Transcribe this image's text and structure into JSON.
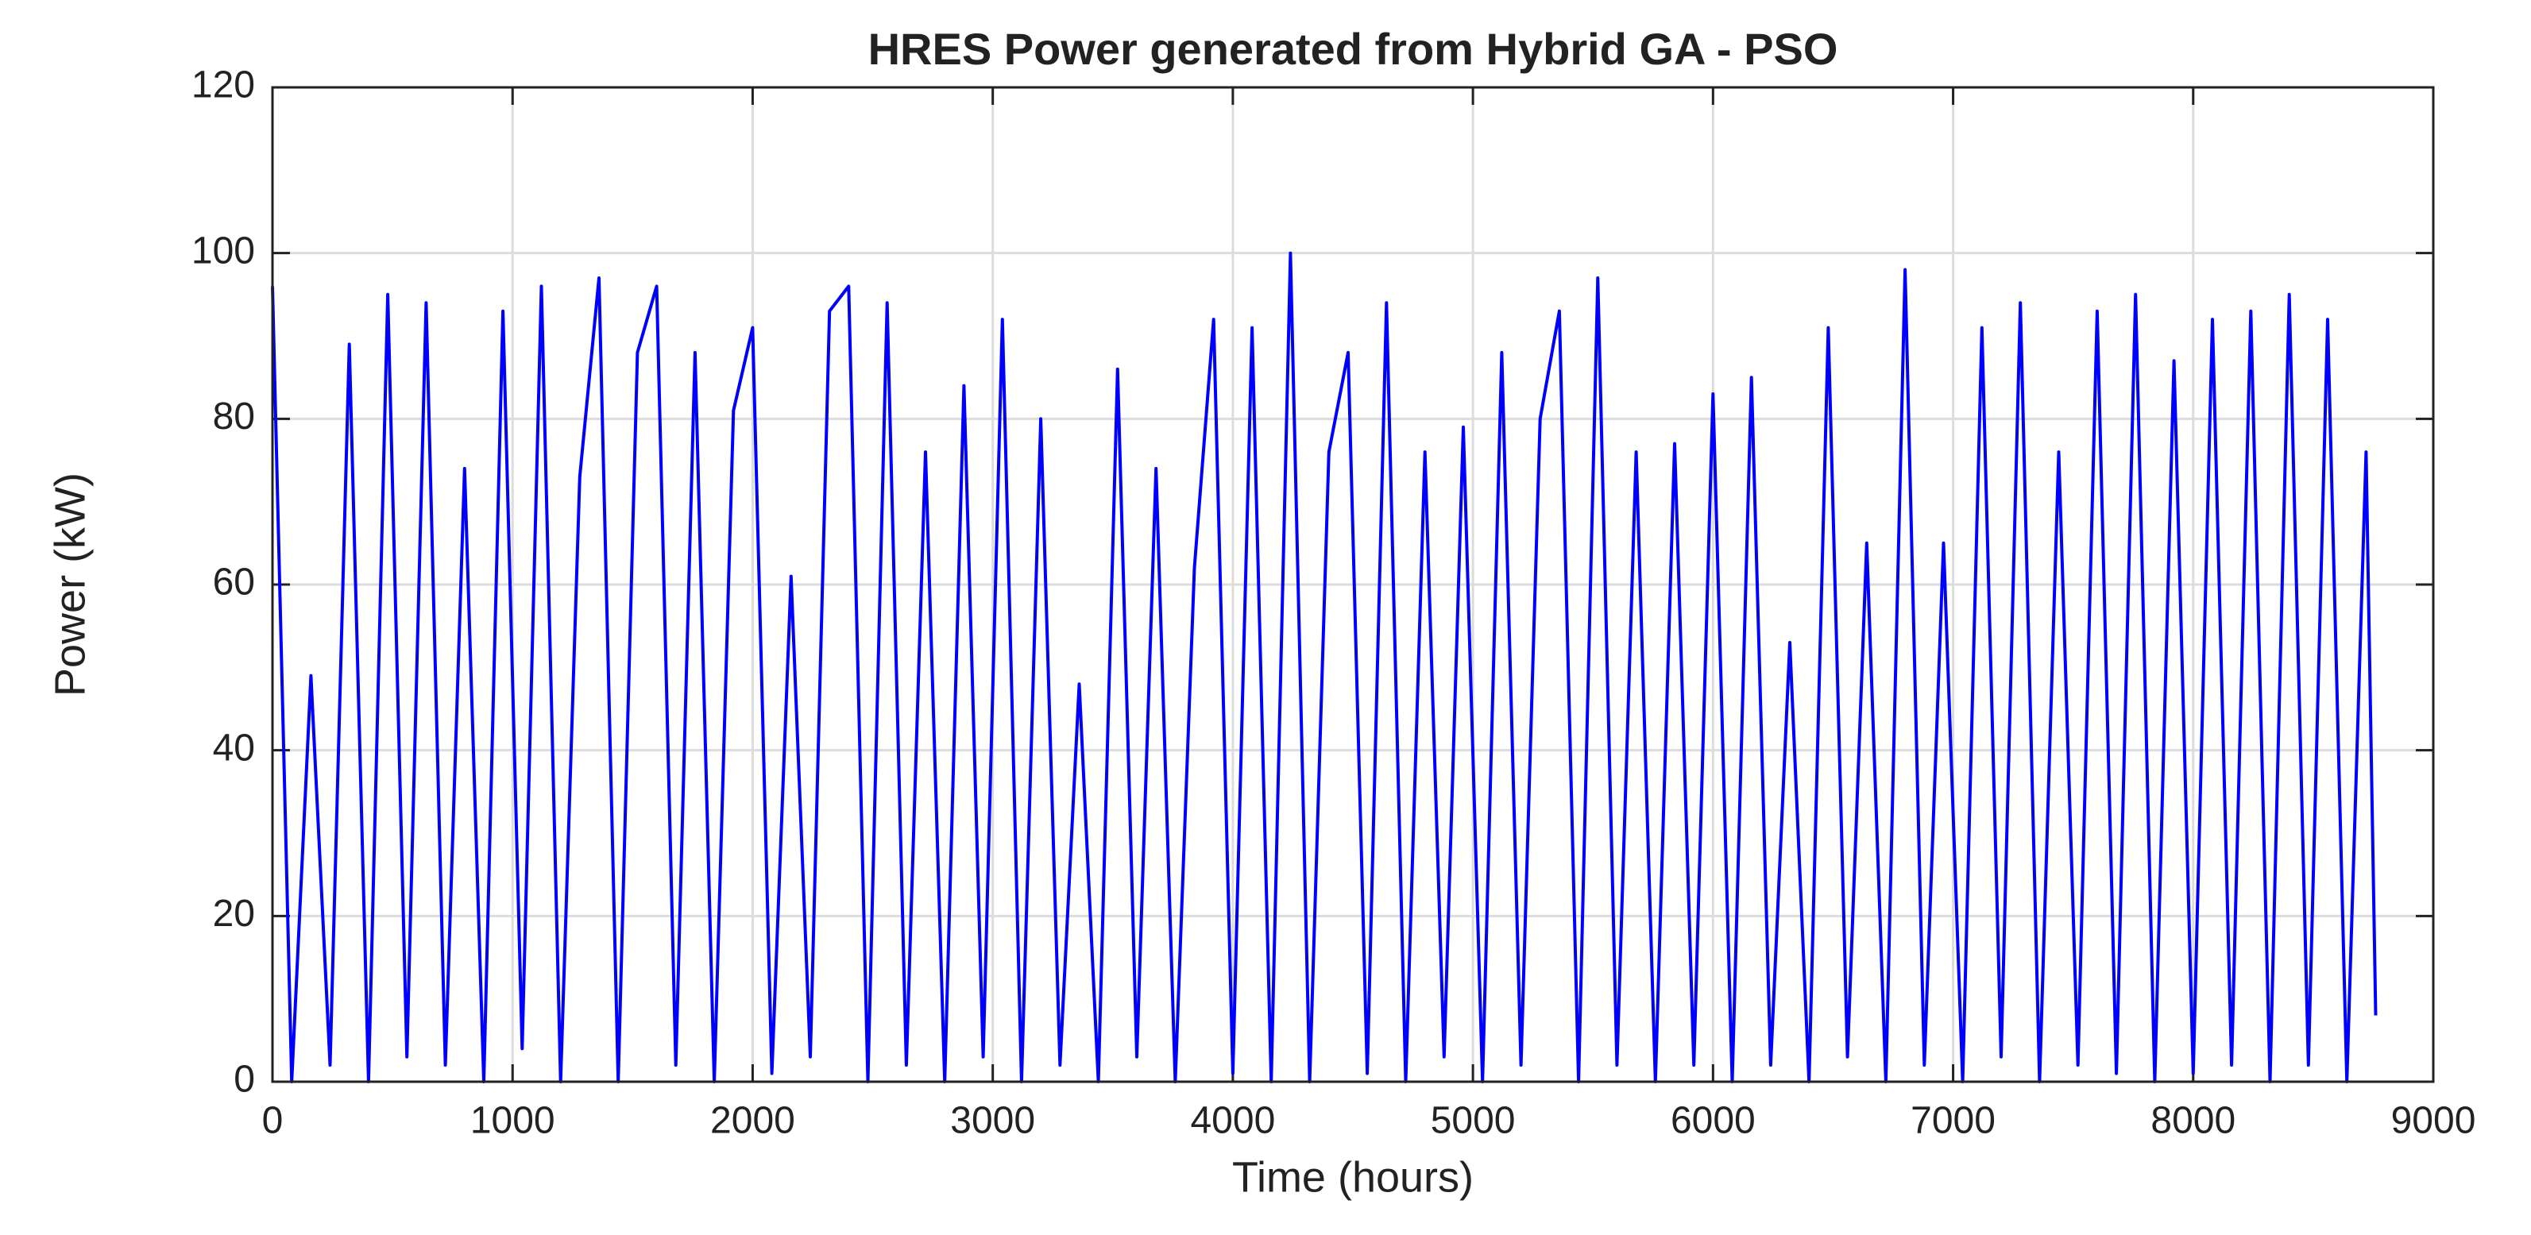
{
  "chart_data": {
    "type": "line",
    "title": "HRES Power generated from Hybrid GA - PSO",
    "x_label": "Time (hours)",
    "y_label": "Power (kW)",
    "x": [
      0,
      80,
      160,
      240,
      320,
      400,
      480,
      560,
      640,
      720,
      800,
      880,
      960,
      1040,
      1120,
      1200,
      1280,
      1360,
      1440,
      1520,
      1600,
      1680,
      1760,
      1840,
      1920,
      2000,
      2080,
      2160,
      2240,
      2320,
      2400,
      2480,
      2560,
      2640,
      2720,
      2800,
      2880,
      2960,
      3040,
      3120,
      3200,
      3280,
      3360,
      3440,
      3520,
      3600,
      3680,
      3760,
      3840,
      3920,
      4000,
      4080,
      4160,
      4240,
      4320,
      4400,
      4480,
      4560,
      4640,
      4720,
      4800,
      4880,
      4960,
      5040,
      5120,
      5200,
      5280,
      5360,
      5440,
      5520,
      5600,
      5680,
      5760,
      5840,
      5920,
      6000,
      6080,
      6160,
      6240,
      6320,
      6400,
      6480,
      6560,
      6640,
      6720,
      6800,
      6880,
      6960,
      7040,
      7120,
      7200,
      7280,
      7360,
      7440,
      7520,
      7600,
      7680,
      7760,
      7840,
      7920,
      8000,
      8080,
      8160,
      8240,
      8320,
      8400,
      8480,
      8560,
      8640,
      8720,
      8760
    ],
    "series": [
      {
        "color": "#0000ff",
        "values": [
          96,
          0,
          49,
          2,
          89,
          0,
          95,
          3,
          94,
          2,
          74,
          0,
          93,
          4,
          96,
          0,
          73,
          97,
          0,
          88,
          96,
          2,
          88,
          0,
          81,
          91,
          1,
          61,
          3,
          93,
          96,
          0,
          94,
          2,
          76,
          0,
          84,
          3,
          92,
          0,
          80,
          2,
          48,
          0,
          86,
          3,
          74,
          0,
          62,
          92,
          1,
          91,
          0,
          100,
          0,
          76,
          88,
          1,
          94,
          0,
          76,
          3,
          79,
          0,
          88,
          2,
          80,
          93,
          0,
          97,
          2,
          76,
          0,
          77,
          2,
          83,
          0,
          85,
          2,
          53,
          0,
          91,
          3,
          65,
          0,
          98,
          2,
          65,
          0,
          91,
          3,
          94,
          0,
          76,
          2,
          93,
          1,
          95,
          0,
          87,
          1,
          92,
          2,
          93,
          0,
          95,
          2,
          92,
          0,
          76,
          8
        ]
      }
    ],
    "xlim": [
      0,
      9000
    ],
    "xticks": [
      0,
      1000,
      2000,
      3000,
      4000,
      5000,
      6000,
      7000,
      8000,
      9000
    ],
    "ylim": [
      0,
      120
    ],
    "yticks": [
      0,
      20,
      40,
      60,
      80,
      100,
      120
    ],
    "grid": true
  }
}
